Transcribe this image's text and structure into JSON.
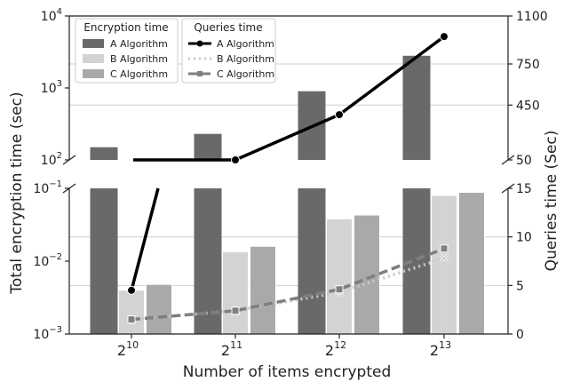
{
  "chart_data": {
    "type": "bar",
    "xlabel": "Number of items encrypted",
    "ylabel_left": "Total encryption time (sec)",
    "ylabel_right": "Queries time (Sec)",
    "categories": [
      {
        "base": "2",
        "exp": "10"
      },
      {
        "base": "2",
        "exp": "11"
      },
      {
        "base": "2",
        "exp": "12"
      },
      {
        "base": "2",
        "exp": "13"
      }
    ],
    "x_log2": [
      10,
      11,
      12,
      13
    ],
    "left_axis": {
      "scale": "log",
      "broken": true,
      "top_segment": {
        "range": [
          100,
          10000
        ],
        "ticks": [
          {
            "base": "10",
            "exp": "2",
            "v": 100
          },
          {
            "base": "10",
            "exp": "3",
            "v": 1000
          },
          {
            "base": "10",
            "exp": "4",
            "v": 10000
          }
        ]
      },
      "bottom_segment": {
        "range": [
          0.001,
          0.1
        ],
        "ticks": [
          {
            "base": "10",
            "exp": "−3",
            "v": 0.001
          },
          {
            "base": "10",
            "exp": "−2",
            "v": 0.01
          },
          {
            "base": "10",
            "exp": "−1",
            "v": 0.1
          }
        ]
      }
    },
    "right_axis": {
      "broken": true,
      "top_segment": {
        "range": [
          50,
          1100
        ],
        "ticks": [
          50,
          450,
          750,
          1100
        ]
      },
      "bottom_segment": {
        "range": [
          0,
          15
        ],
        "ticks": [
          0,
          5,
          10,
          15
        ]
      }
    },
    "bar_series": [
      {
        "name": "A Algorithm",
        "color": "#696969",
        "values": [
          150,
          230,
          900,
          2800
        ]
      },
      {
        "name": "B Algorithm",
        "color": "#d3d3d3",
        "values": [
          0.004,
          0.0135,
          0.038,
          0.08
        ]
      },
      {
        "name": "C Algorithm",
        "color": "#a9a9a9",
        "values": [
          0.0048,
          0.016,
          0.043,
          0.088
        ]
      }
    ],
    "line_series": [
      {
        "name": "A Algorithm",
        "color": "#000000",
        "style": "solid",
        "marker": "circle",
        "values": [
          4.5,
          50,
          380,
          950
        ]
      },
      {
        "name": "B Algorithm",
        "color": "#c8c8c8",
        "style": "dotted",
        "marker": "x",
        "values": [
          1.5,
          2.4,
          4.3,
          7.8
        ]
      },
      {
        "name": "C Algorithm",
        "color": "#7f7f7f",
        "style": "dashed",
        "marker": "square",
        "values": [
          1.5,
          2.4,
          4.6,
          8.8
        ]
      }
    ],
    "legend_bars": {
      "title": "Encryption time",
      "placement": "top-left"
    },
    "legend_lines": {
      "title": "Queries time",
      "placement": "top-left"
    },
    "grid": "horizontal"
  }
}
